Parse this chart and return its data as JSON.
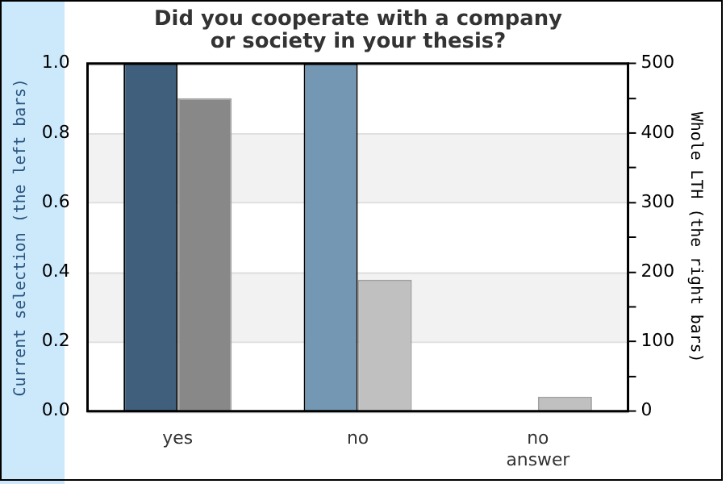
{
  "chart_data": {
    "type": "bar",
    "title": "Did you cooperate with a company\nor society in your thesis?",
    "ylabel": "Current selection (the left bars)",
    "y2label": "Whole LTH (the right bars)",
    "categories": [
      "yes",
      "no",
      "no\nanswer"
    ],
    "series": [
      {
        "colors": [
          "#3f5f7c",
          "#7497b3",
          "#7497b3"
        ],
        "values": [
          1.0,
          1.0,
          0
        ]
      },
      {
        "colors": [
          "#888888",
          "#c0c0c0",
          "#c0c0c0"
        ],
        "values": [
          450,
          189,
          21
        ],
        "axis": "y2"
      }
    ],
    "ylim": [
      0,
      1.0
    ],
    "yticks": [
      {
        "value": 0,
        "label": "0.0"
      },
      0.2,
      0.4,
      0.6,
      0.8,
      {
        "value": 1,
        "label": "1.0"
      }
    ],
    "y2lim": [
      0,
      500
    ],
    "y2ticks": [
      0,
      {
        "value": 50,
        "label": null
      },
      100,
      {
        "value": 150,
        "label": null
      },
      200,
      {
        "value": 250,
        "label": null
      },
      300,
      {
        "value": 350,
        "label": null
      },
      400,
      {
        "value": 450,
        "label": null
      },
      500
    ],
    "bands": [
      {
        "axis": "y",
        "from": 0.2,
        "to": 0.4,
        "color": "#f2f2f2"
      },
      {
        "axis": "y",
        "from": 0.6,
        "to": 0.8,
        "color": "#f2f2f2"
      }
    ],
    "grid": "y",
    "legend": false
  }
}
